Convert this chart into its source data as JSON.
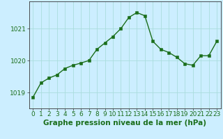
{
  "x": [
    0,
    1,
    2,
    3,
    4,
    5,
    6,
    7,
    8,
    9,
    10,
    11,
    12,
    13,
    14,
    15,
    16,
    17,
    18,
    19,
    20,
    21,
    22,
    23
  ],
  "y": [
    1018.85,
    1019.3,
    1019.45,
    1019.55,
    1019.75,
    1019.85,
    1019.92,
    1020.0,
    1020.35,
    1020.55,
    1020.75,
    1021.0,
    1021.35,
    1021.5,
    1021.4,
    1020.6,
    1020.35,
    1020.25,
    1020.1,
    1019.9,
    1019.85,
    1020.15,
    1020.15,
    1020.6
  ],
  "line_color": "#1a6e1a",
  "marker_color": "#1a6e1a",
  "bg_color": "#cceeff",
  "grid_color": "#aadddd",
  "xlabel": "Graphe pression niveau de la mer (hPa)",
  "xlabel_fontsize": 7.5,
  "yticks": [
    1019,
    1020,
    1021
  ],
  "xtick_labels": [
    "0",
    "1",
    "2",
    "3",
    "4",
    "5",
    "6",
    "7",
    "8",
    "9",
    "10",
    "11",
    "12",
    "13",
    "14",
    "15",
    "16",
    "17",
    "18",
    "19",
    "20",
    "21",
    "22",
    "23"
  ],
  "ylim": [
    1018.5,
    1021.85
  ],
  "xlim": [
    -0.5,
    23.5
  ],
  "tick_fontsize": 6.5,
  "line_width": 1.0,
  "marker_size": 2.5
}
